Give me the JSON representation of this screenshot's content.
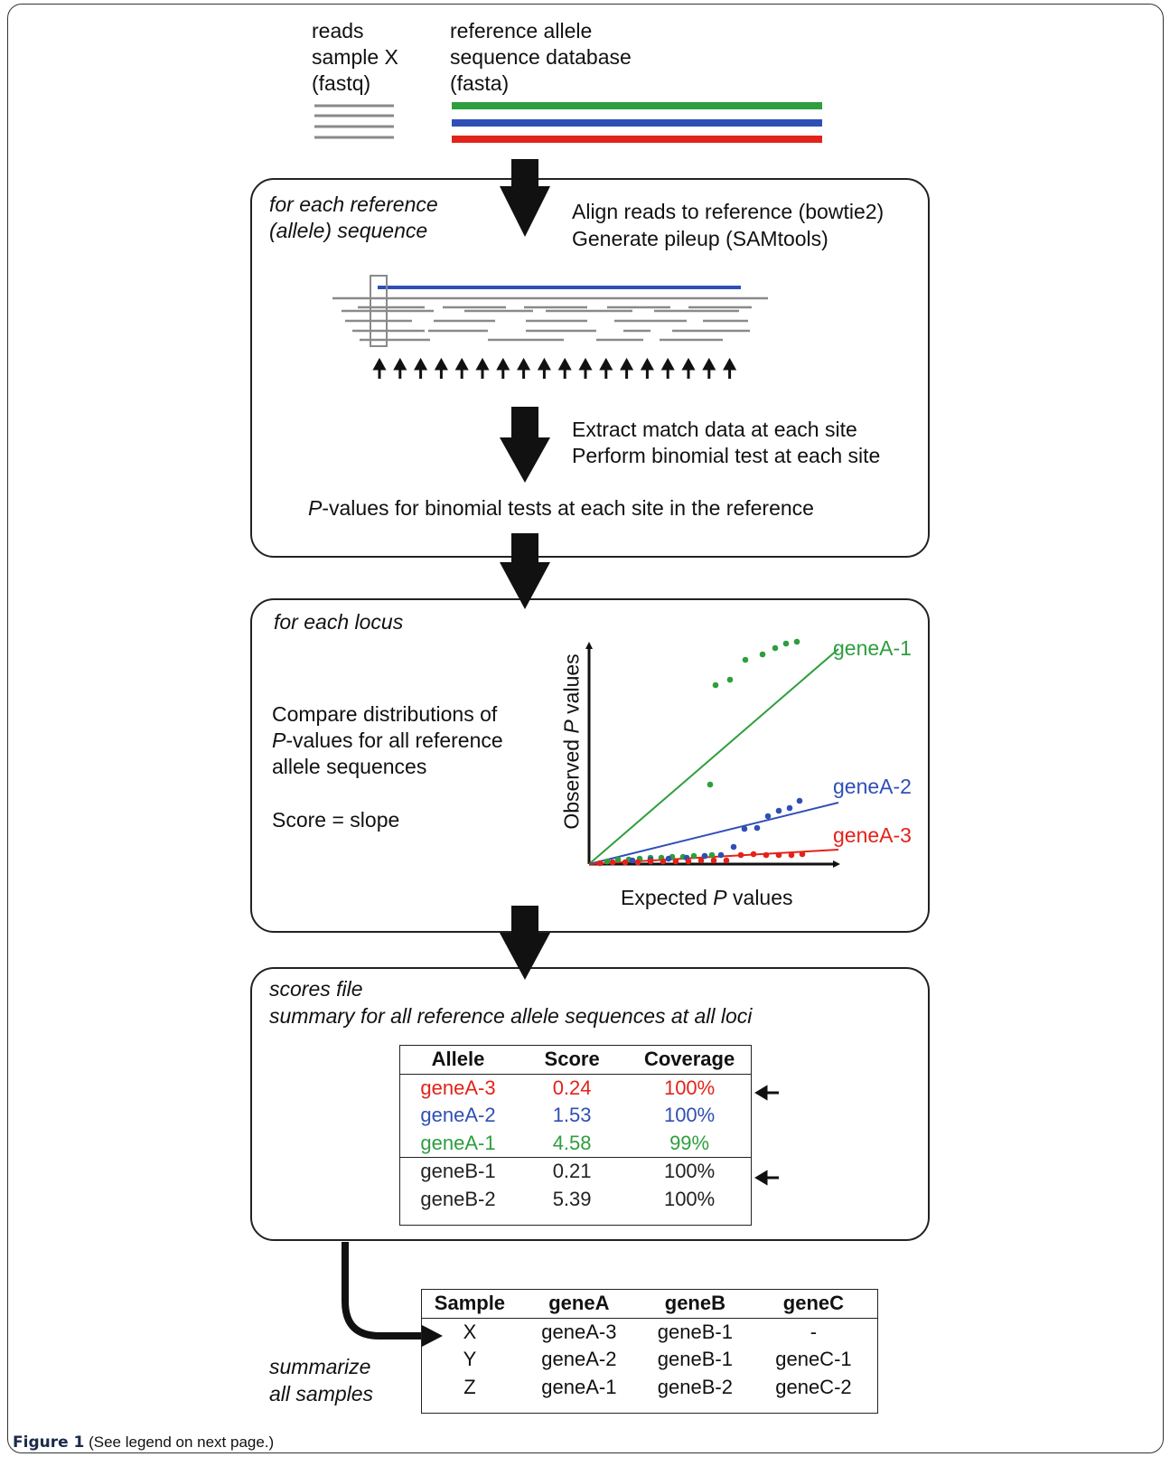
{
  "input": {
    "reads_label": [
      "reads",
      "sample X",
      "(fastq)"
    ],
    "reference_label": [
      "reference allele",
      "sequence database",
      "(fasta)"
    ],
    "colors": {
      "gray": "#8a8a8a",
      "green": "#2e9e3e",
      "blue": "#2f4fb5",
      "red": "#e2231a"
    }
  },
  "step1": {
    "title": [
      "for each reference",
      "(allele) sequence"
    ],
    "actions": [
      "Align reads to reference (bowtie2)",
      "Generate pileup (SAMtools)"
    ],
    "actions2": [
      "Extract match data at each site",
      "Perform binomial test at each site"
    ],
    "result_italic": "P",
    "result_rest": "-values for binomial tests at each site in the reference"
  },
  "step2": {
    "title": "for each locus",
    "desc_line1": "Compare distributions of",
    "desc_line2_italic": "P",
    "desc_line2_rest": "-values for all reference",
    "desc_line3": "allele sequences",
    "score": "Score = slope",
    "plot": {
      "ylabel_prefix": "Observed ",
      "ylabel_italic": "P",
      "ylabel_suffix": " values",
      "xlabel_prefix": "Expected ",
      "xlabel_italic": "P",
      "xlabel_suffix": " values",
      "series": [
        {
          "name": "geneA-1",
          "color": "#2e9e3e"
        },
        {
          "name": "geneA-2",
          "color": "#2f4fb5"
        },
        {
          "name": "geneA-3",
          "color": "#e2231a"
        }
      ]
    }
  },
  "step3": {
    "title": [
      "scores file",
      "summary for all reference allele sequences at all loci"
    ],
    "headers": [
      "Allele",
      "Score",
      "Coverage"
    ],
    "rows": [
      {
        "allele": "geneA-3",
        "score": "0.24",
        "coverage": "100%",
        "color": "#e2231a"
      },
      {
        "allele": "geneA-2",
        "score": "1.53",
        "coverage": "100%",
        "color": "#2f4fb5"
      },
      {
        "allele": "geneA-1",
        "score": "4.58",
        "coverage": "99%",
        "color": "#2e9e3e"
      },
      {
        "allele": "geneB-1",
        "score": "0.21",
        "coverage": "100%",
        "color": "#222222"
      },
      {
        "allele": "geneB-2",
        "score": "5.39",
        "coverage": "100%",
        "color": "#222222"
      }
    ]
  },
  "summary": {
    "label": [
      "summarize",
      "all samples"
    ],
    "headers": [
      "Sample",
      "geneA",
      "geneB",
      "geneC"
    ],
    "rows": [
      [
        "X",
        "geneA-3",
        "geneB-1",
        "-"
      ],
      [
        "Y",
        "geneA-2",
        "geneB-1",
        "geneC-1"
      ],
      [
        "Z",
        "geneA-1",
        "geneB-2",
        "geneC-2"
      ]
    ]
  },
  "caption": {
    "bold": "Figure 1",
    "rest": " (See legend on next page.)"
  }
}
